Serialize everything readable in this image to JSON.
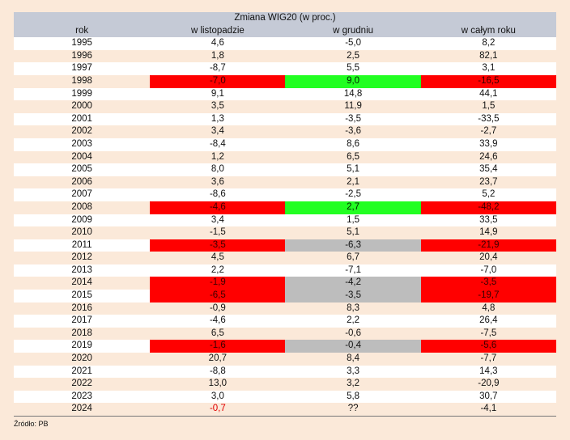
{
  "title": "Zmiana WIG20 (w proc.)",
  "headers": [
    "rok",
    "w listopadzie",
    "w grudniu",
    "w całym roku"
  ],
  "rows": [
    [
      "1995",
      "4,6",
      "-5,0",
      "8,2"
    ],
    [
      "1996",
      "1,8",
      "2,5",
      "82,1"
    ],
    [
      "1997",
      "-8,7",
      "5,5",
      "3,1"
    ],
    [
      "1998",
      "-7,0",
      "9,0",
      "-16,5"
    ],
    [
      "1999",
      "9,1",
      "14,8",
      "44,1"
    ],
    [
      "2000",
      "3,5",
      "11,9",
      "1,5"
    ],
    [
      "2001",
      "1,3",
      "-3,5",
      "-33,5"
    ],
    [
      "2002",
      "3,4",
      "-3,6",
      "-2,7"
    ],
    [
      "2003",
      "-8,4",
      "8,6",
      "33,9"
    ],
    [
      "2004",
      "1,2",
      "6,5",
      "24,6"
    ],
    [
      "2005",
      "8,0",
      "5,1",
      "35,4"
    ],
    [
      "2006",
      "3,6",
      "2,1",
      "23,7"
    ],
    [
      "2007",
      "-8,6",
      "-2,5",
      "5,2"
    ],
    [
      "2008",
      "-4,6",
      "2,7",
      "-48,2"
    ],
    [
      "2009",
      "3,4",
      "1,5",
      "33,5"
    ],
    [
      "2010",
      "-1,5",
      "5,1",
      "14,9"
    ],
    [
      "2011",
      "-3,5",
      "-6,3",
      "-21,9"
    ],
    [
      "2012",
      "4,5",
      "6,7",
      "20,4"
    ],
    [
      "2013",
      "2,2",
      "-7,1",
      "-7,0"
    ],
    [
      "2014",
      "-1,9",
      "-4,2",
      "-3,5"
    ],
    [
      "2015",
      "-6,5",
      "-3,5",
      "-19,7"
    ],
    [
      "2016",
      "-0,9",
      "8,3",
      "4,8"
    ],
    [
      "2017",
      "-4,6",
      "2,2",
      "26,4"
    ],
    [
      "2018",
      "6,5",
      "-0,6",
      "-7,5"
    ],
    [
      "2019",
      "-1,6",
      "-0,4",
      "-5,6"
    ],
    [
      "2020",
      "20,7",
      "8,4",
      "-7,7"
    ],
    [
      "2021",
      "-8,8",
      "3,3",
      "14,3"
    ],
    [
      "2022",
      "13,0",
      "3,2",
      "-20,9"
    ],
    [
      "2023",
      "3,0",
      "5,8",
      "30,7"
    ],
    [
      "2024",
      "-0,7",
      "??",
      "-4,1"
    ]
  ],
  "highlights": {
    "1998": [
      "red",
      "green",
      "red"
    ],
    "2008": [
      "red",
      "green",
      "red"
    ],
    "2011": [
      "red",
      "gray",
      "red"
    ],
    "2014": [
      "red",
      "gray",
      "red"
    ],
    "2015": [
      "red",
      "gray",
      "red"
    ],
    "2019": [
      "red",
      "gray",
      "red"
    ],
    "2024": [
      "neg-red-text",
      "",
      ""
    ]
  },
  "colors": {
    "red": "#ff0000",
    "green": "#22ff22",
    "gray": "#bdbdbd",
    "header_bg": "#c5cad6",
    "alt_row_bg": "#fbe9d9"
  },
  "source": "Źródło: PB"
}
